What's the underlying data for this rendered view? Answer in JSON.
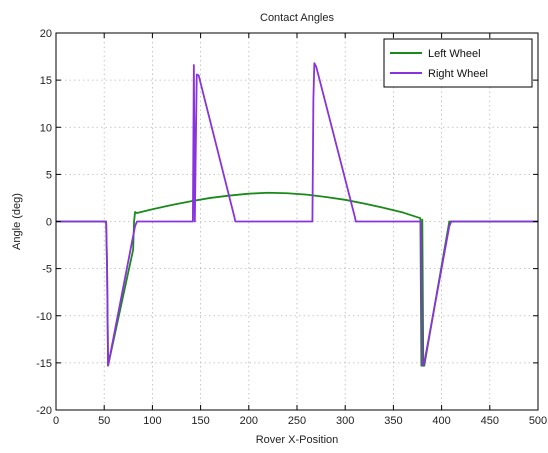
{
  "chart_data": {
    "type": "line",
    "title": "Contact Angles",
    "xlabel": "Rover X-Position",
    "ylabel": "Angle (deg)",
    "xlim": [
      0,
      500
    ],
    "ylim": [
      -20,
      20
    ],
    "xticks": [
      0,
      50,
      100,
      150,
      200,
      250,
      300,
      350,
      400,
      450,
      500
    ],
    "yticks": [
      -20,
      -15,
      -10,
      -5,
      0,
      5,
      10,
      15,
      20
    ],
    "grid": true,
    "legend_position": "top-right",
    "series": [
      {
        "name": "Left Wheel",
        "color": "#1a8a1a",
        "x": [
          0,
          52,
          53,
          54,
          80,
          81,
          82,
          84,
          100,
          120,
          140,
          160,
          180,
          200,
          220,
          240,
          260,
          280,
          300,
          320,
          340,
          360,
          378,
          379,
          380,
          381,
          382,
          408,
          410,
          450,
          500
        ],
        "y": [
          0,
          0,
          -5,
          -15.3,
          -3.0,
          0,
          1,
          0.9,
          1.3,
          1.75,
          2.15,
          2.5,
          2.75,
          2.95,
          3.05,
          3.0,
          2.85,
          2.6,
          2.3,
          1.9,
          1.45,
          0.95,
          0.35,
          -15.3,
          0.2,
          -15.3,
          -15.3,
          0,
          0,
          0,
          0
        ]
      },
      {
        "name": "Right Wheel",
        "color": "#8833dd",
        "x": [
          0,
          52,
          53,
          54,
          82,
          84,
          142,
          143,
          144,
          146,
          148,
          185,
          186,
          266,
          267,
          268,
          270,
          310,
          311,
          378,
          379,
          380,
          382,
          408,
          410,
          450,
          500
        ],
        "y": [
          0,
          0,
          -5,
          -15.3,
          -0.5,
          0,
          0,
          16.6,
          0,
          15.6,
          15.5,
          0.5,
          0,
          0,
          13,
          16.8,
          16.4,
          0.5,
          0,
          0,
          -3,
          -15.3,
          -15.0,
          -0.5,
          0,
          0,
          0
        ]
      }
    ]
  }
}
